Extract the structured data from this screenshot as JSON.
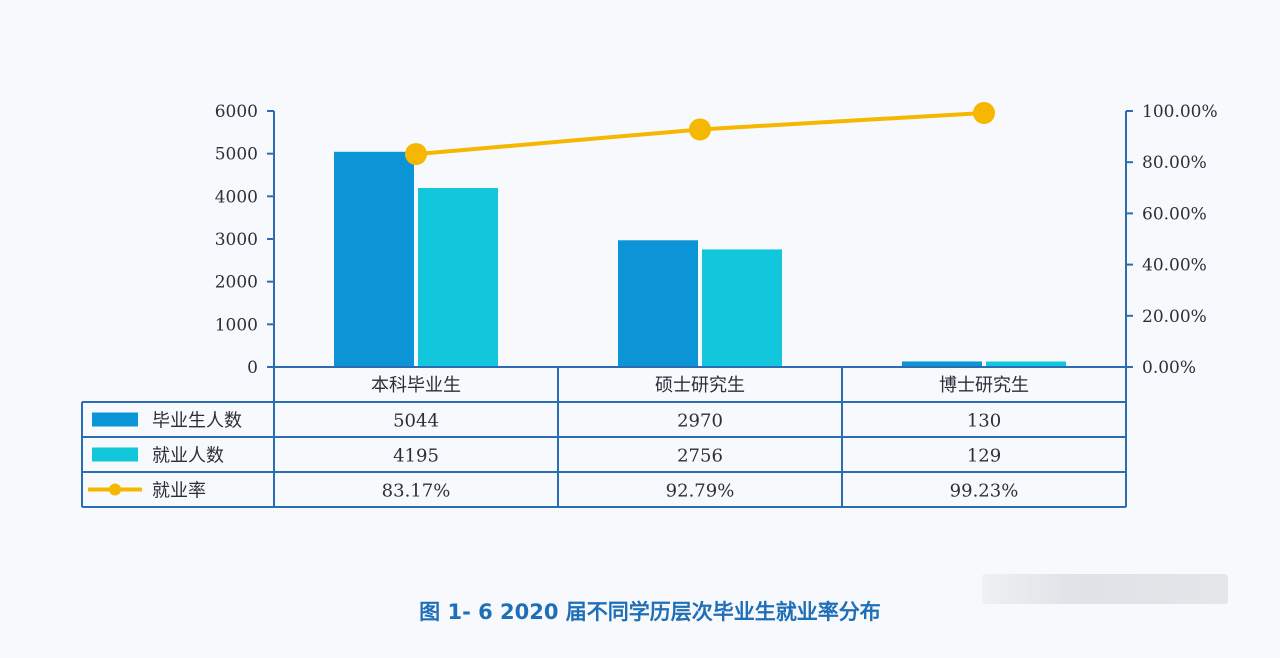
{
  "chart_data": {
    "type": "bar",
    "categories": [
      "本科毕业生",
      "硕士研究生",
      "博士研究生"
    ],
    "series": [
      {
        "name": "毕业生人数",
        "values": [
          5044,
          2970,
          130
        ],
        "color": "#0b95d6",
        "kind": "bar"
      },
      {
        "name": "就业人数",
        "values": [
          4195,
          2756,
          129
        ],
        "color": "#12c6db",
        "kind": "bar"
      },
      {
        "name": "就业率",
        "values": [
          83.17,
          92.79,
          99.23
        ],
        "color": "#f5b700",
        "kind": "line",
        "axis": "right"
      }
    ],
    "table_values": [
      [
        "5044",
        "2970",
        "130"
      ],
      [
        "4195",
        "2756",
        "129"
      ],
      [
        "83.17%",
        "92.79%",
        "99.23%"
      ]
    ],
    "y_left": {
      "ticks": [
        "6000",
        "5000",
        "4000",
        "3000",
        "2000",
        "1000",
        "0"
      ],
      "range": [
        0,
        6000
      ]
    },
    "y_right": {
      "ticks": [
        "100.00%",
        "80.00%",
        "60.00%",
        "40.00%",
        "20.00%",
        "0.00%"
      ],
      "range": [
        0,
        100
      ]
    },
    "caption": "图 1- 6    2020 届不同学历层次毕业生就业率分布",
    "axis_color": "#2a6db3",
    "grid": false,
    "legend": "data table"
  }
}
